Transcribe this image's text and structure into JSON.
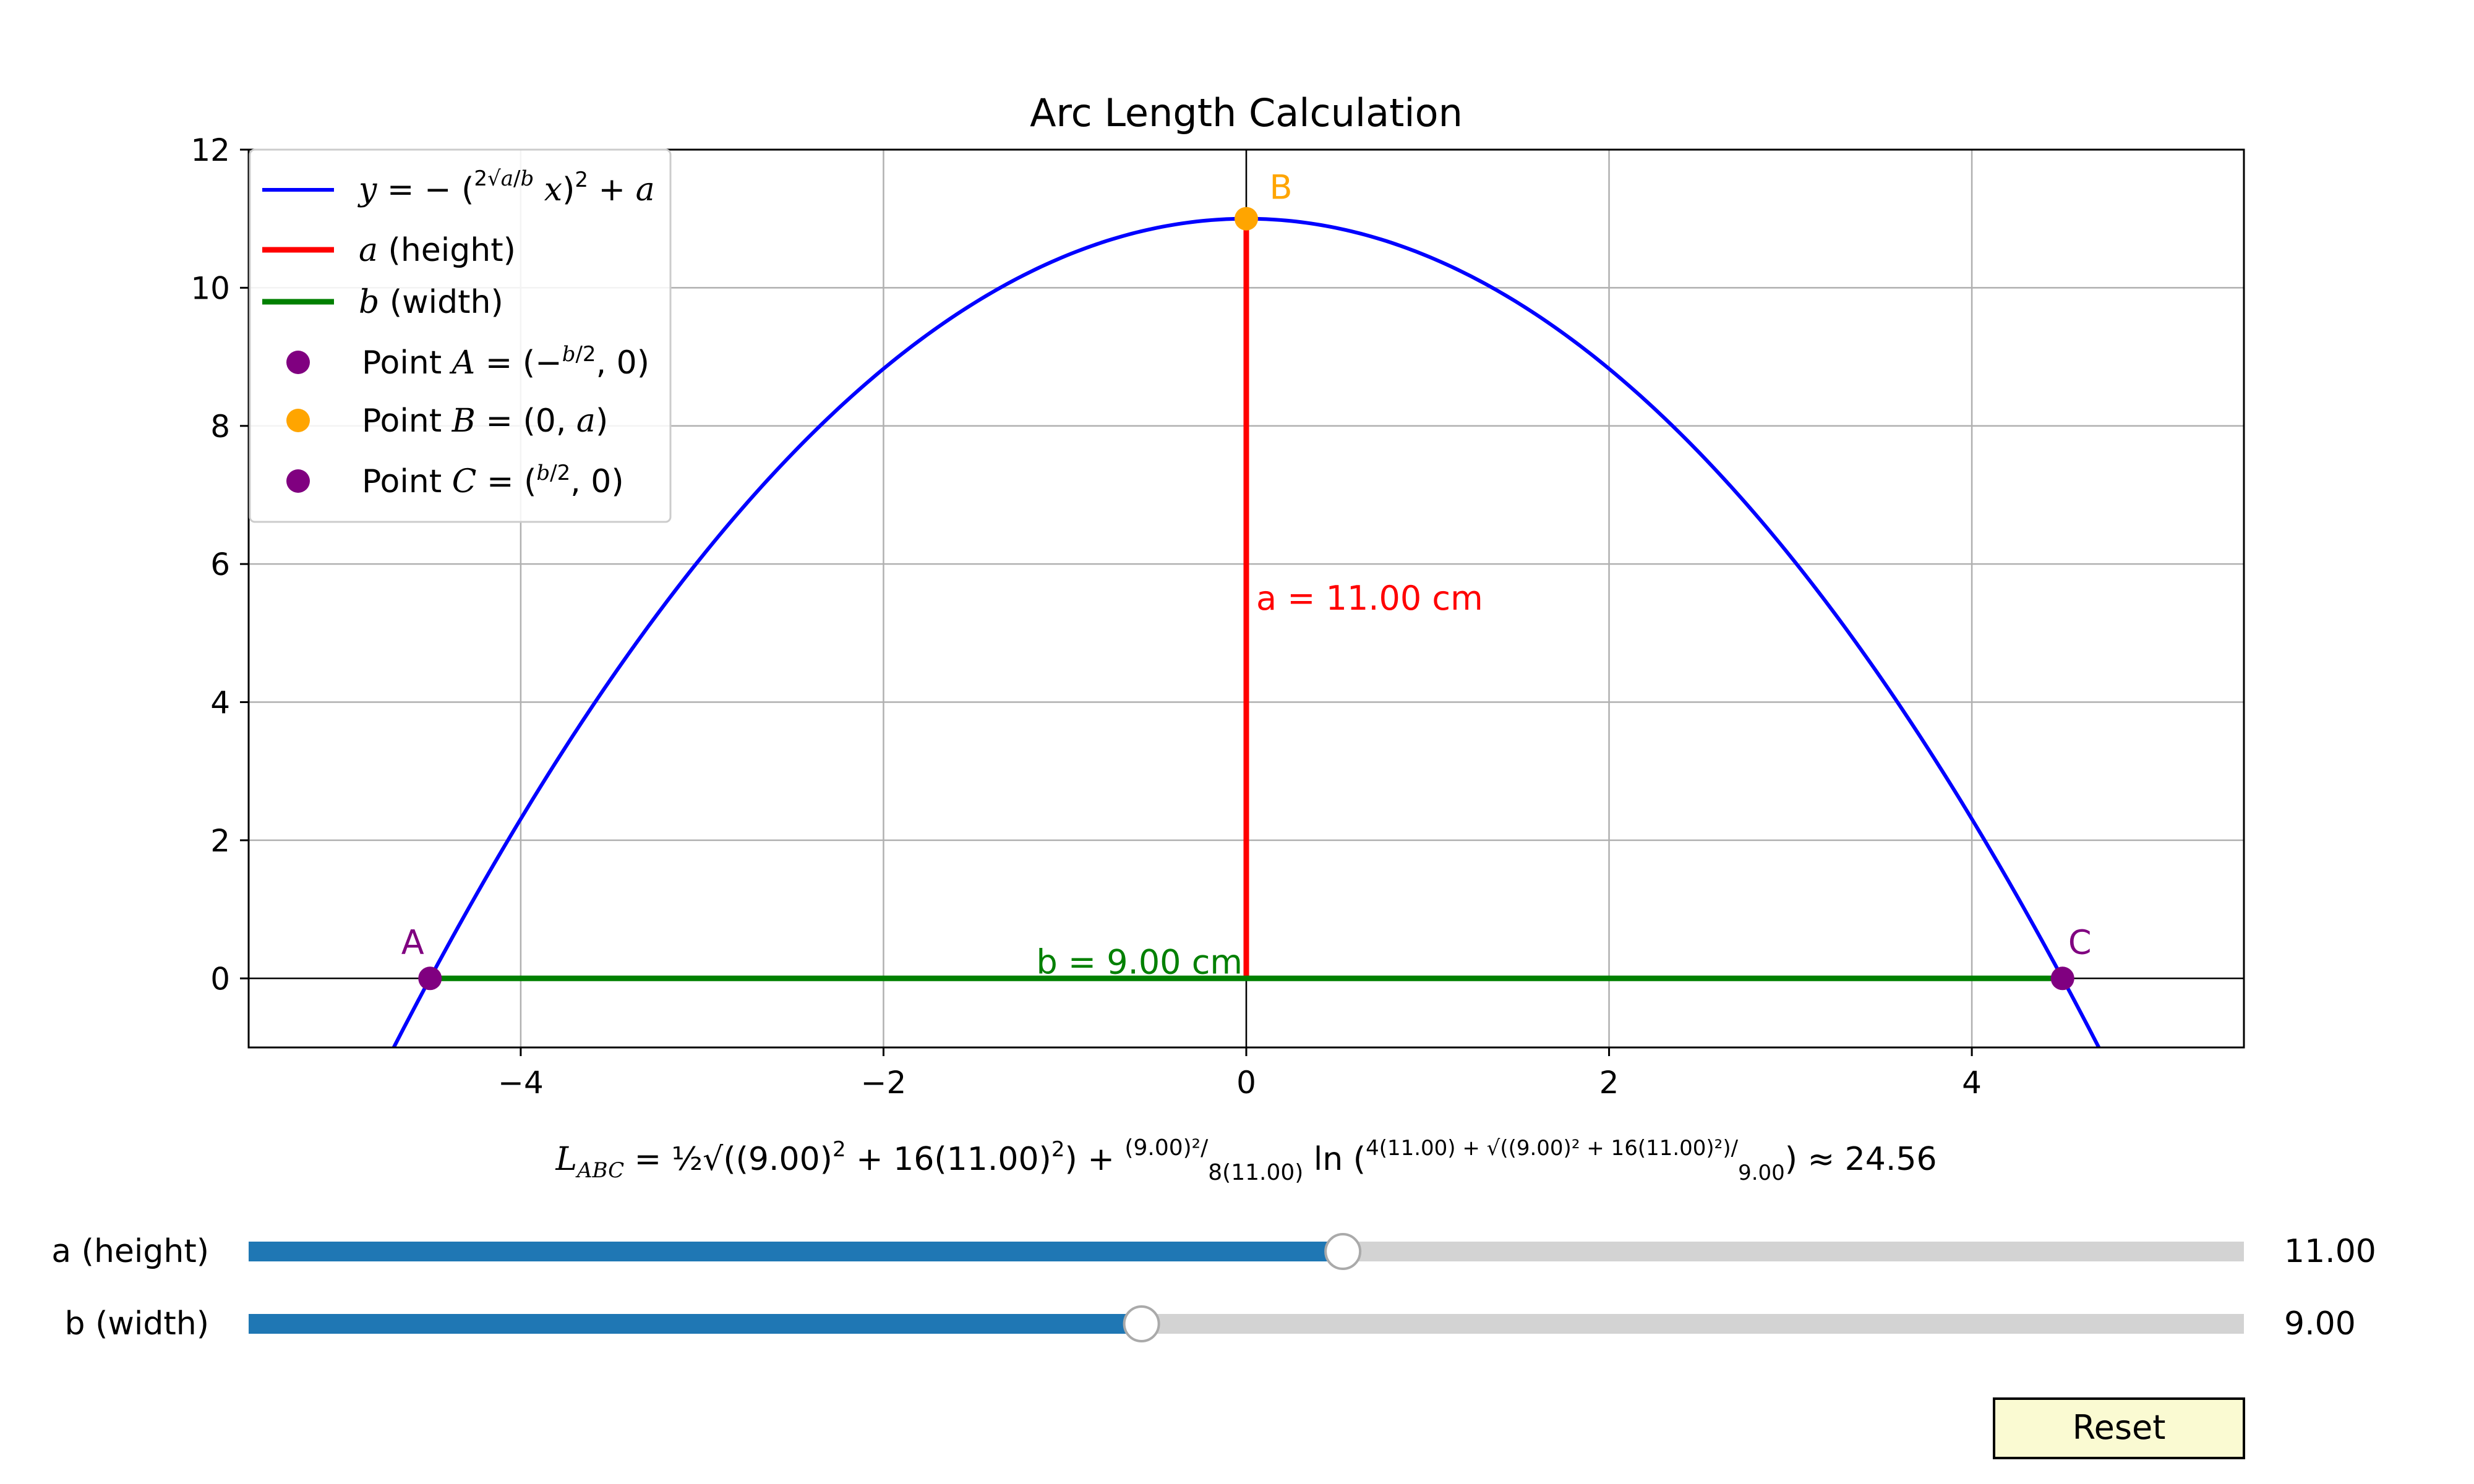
{
  "chart_data": {
    "type": "line",
    "title": "Arc Length Calculation",
    "xlim": [
      -5.5,
      5.5
    ],
    "ylim": [
      -1,
      12
    ],
    "xticks": [
      -4,
      -2,
      0,
      2,
      4
    ],
    "xtick_labels": [
      "−4",
      "−2",
      "0",
      "2",
      "4"
    ],
    "yticks": [
      0,
      2,
      4,
      6,
      8,
      10,
      12
    ],
    "ytick_labels": [
      "0",
      "2",
      "4",
      "6",
      "8",
      "10",
      "12"
    ],
    "grid": true,
    "legend_position": "upper-left",
    "a": 11.0,
    "b": 9.0,
    "series": [
      {
        "name": "y = −(2√a/b x)² + a",
        "color": "#0000ff"
      },
      {
        "name": "a (height)",
        "color": "#ff0000",
        "x": [
          0,
          0
        ],
        "y": [
          0,
          11
        ]
      },
      {
        "name": "b (width)",
        "color": "#008000",
        "x": [
          -4.5,
          4.5
        ],
        "y": [
          0,
          0
        ]
      }
    ],
    "points": [
      {
        "name": "A",
        "legend": "Point A = (−b/2, 0)",
        "x": -4.5,
        "y": 0,
        "color": "#800080"
      },
      {
        "name": "B",
        "legend": "Point B = (0, a)",
        "x": 0,
        "y": 11,
        "color": "#ffa500"
      },
      {
        "name": "C",
        "legend": "Point C = (b/2, 0)",
        "x": 4.5,
        "y": 0,
        "color": "#800080"
      }
    ],
    "annotations": {
      "height": "a = 11.00 cm",
      "width": "b = 9.00 cm"
    },
    "formula": "L_ABC = ½√((9.00)² + 16(11.00)²) + (9.00)²/8(11.00) ln((4(11.00) + √((9.00)² + 16(11.00)²))/9.00) ≈ 24.56",
    "arc_length": 24.56
  },
  "sliders": {
    "a": {
      "label": "a (height)",
      "value_text": "11.00",
      "fraction": 0.5484
    },
    "b": {
      "label": "b (width)",
      "value_text": "9.00",
      "fraction": 0.4475
    }
  },
  "reset": {
    "label": "Reset"
  },
  "colors": {
    "curve": "#0000ff",
    "height": "#ff0000",
    "width": "#008000",
    "point_ac": "#800080",
    "point_b": "#ffa500",
    "slider_fill": "#1f77b4",
    "slider_track": "#d3d3d3",
    "reset_bg": "#fafad2"
  }
}
